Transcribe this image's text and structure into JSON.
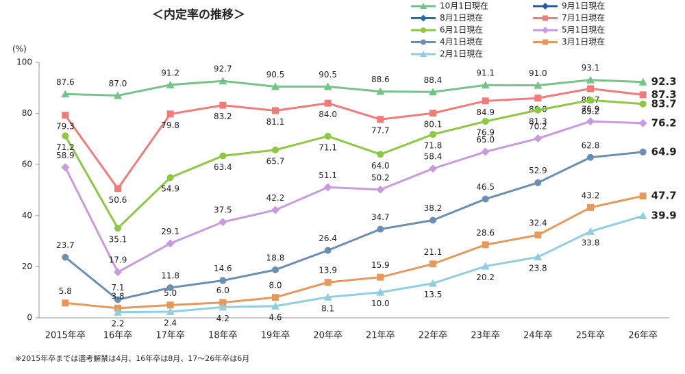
{
  "chart_data": {
    "type": "line",
    "title": "＜内定率の推移＞",
    "y_label": "(%)",
    "note": "※2015年卒までは選考解禁は4月、16年卒は8月、17～26年卒は6月",
    "categories": [
      "2015年卒",
      "16年卒",
      "17年卒",
      "18年卒",
      "19年卒",
      "20年卒",
      "21年卒",
      "22年卒",
      "23年卒",
      "24年卒",
      "25年卒",
      "26年卒"
    ],
    "ylim": [
      0,
      100
    ],
    "yticks": [
      0,
      20,
      40,
      60,
      80,
      100
    ],
    "grid": false,
    "series": [
      {
        "name": "10月1日現在",
        "color": "#74c48a",
        "marker": "triangle",
        "values": [
          87.6,
          87.0,
          91.2,
          92.7,
          90.5,
          90.5,
          88.6,
          88.4,
          91.1,
          91.0,
          93.1,
          92.3
        ],
        "value_labels": [
          "87.6",
          "87.0",
          "91.2",
          "92.7",
          "90.5",
          "90.5",
          "88.6",
          "88.4",
          "91.1",
          "91.0",
          "93.1",
          "92.3"
        ]
      },
      {
        "name": "9月1日現在",
        "color": "#1f5fa8",
        "marker": "diamond",
        "values": [
          null,
          null,
          null,
          null,
          null,
          null,
          null,
          null,
          null,
          null,
          null,
          null
        ]
      },
      {
        "name": "8月1日現在",
        "color": "#1f6fb5",
        "marker": "diamond",
        "values": [
          null,
          null,
          null,
          null,
          null,
          null,
          null,
          null,
          null,
          null,
          null,
          null
        ]
      },
      {
        "name": "7月1日現在",
        "color": "#f47a7a",
        "marker": "square",
        "values": [
          79.3,
          50.6,
          79.8,
          83.2,
          81.1,
          84.0,
          77.7,
          80.1,
          84.9,
          86.0,
          89.7,
          87.3
        ],
        "value_labels": [
          "79.3",
          "50.6",
          "79.8",
          "83.2",
          "81.1",
          "84.0",
          "77.7",
          "80.1",
          "84.9",
          "86.0",
          "89.7",
          "87.3"
        ]
      },
      {
        "name": "6月1日現在",
        "color": "#8cc93e",
        "marker": "circle",
        "values": [
          71.2,
          35.1,
          54.9,
          63.4,
          65.7,
          71.1,
          64.0,
          71.8,
          76.9,
          81.3,
          85.2,
          83.7
        ],
        "value_labels": [
          "71.2",
          "35.1",
          "54.9",
          "63.4",
          "65.7",
          "71.1",
          "64.0",
          "71.8",
          "76.9",
          "81.3",
          "85.2",
          "83.7"
        ]
      },
      {
        "name": "5月1日現在",
        "color": "#c99ae0",
        "marker": "diamond",
        "values": [
          58.9,
          17.9,
          29.1,
          37.5,
          42.2,
          51.1,
          50.2,
          58.4,
          65.0,
          70.2,
          76.9,
          76.2
        ],
        "value_labels": [
          "58.9",
          "17.9",
          "29.1",
          "37.5",
          "42.2",
          "51.1",
          "50.2",
          "58.4",
          "65.0",
          "70.2",
          "76.9",
          "76.2"
        ]
      },
      {
        "name": "4月1日現在",
        "color": "#6a8fb2",
        "marker": "circle",
        "values": [
          23.7,
          7.1,
          11.8,
          14.6,
          18.8,
          26.4,
          34.7,
          38.2,
          46.5,
          52.9,
          62.8,
          64.9
        ],
        "value_labels": [
          "23.7",
          "7.1",
          "11.8",
          "14.6",
          "18.8",
          "26.4",
          "34.7",
          "38.2",
          "46.5",
          "52.9",
          "62.8",
          "64.9"
        ]
      },
      {
        "name": "3月1日現在",
        "color": "#e8995a",
        "marker": "square",
        "values": [
          5.8,
          3.8,
          5.0,
          6.0,
          8.0,
          13.9,
          15.9,
          21.1,
          28.6,
          32.4,
          43.2,
          47.7
        ],
        "value_labels": [
          "5.8",
          "3.8",
          "5.0",
          "6.0",
          "8.0",
          "13.9",
          "15.9",
          "21.1",
          "28.6",
          "32.4",
          "43.2",
          "47.7"
        ]
      },
      {
        "name": "2月1日現在",
        "color": "#8fcfe0",
        "marker": "triangle",
        "values": [
          null,
          2.2,
          2.4,
          4.2,
          4.6,
          8.1,
          10.0,
          13.5,
          20.2,
          23.8,
          33.8,
          39.9
        ],
        "value_labels": [
          null,
          "2.2",
          "2.4",
          "4.2",
          "4.6",
          "8.1",
          "10.0",
          "13.5",
          "20.2",
          "23.8",
          "33.8",
          "39.9"
        ]
      }
    ]
  }
}
